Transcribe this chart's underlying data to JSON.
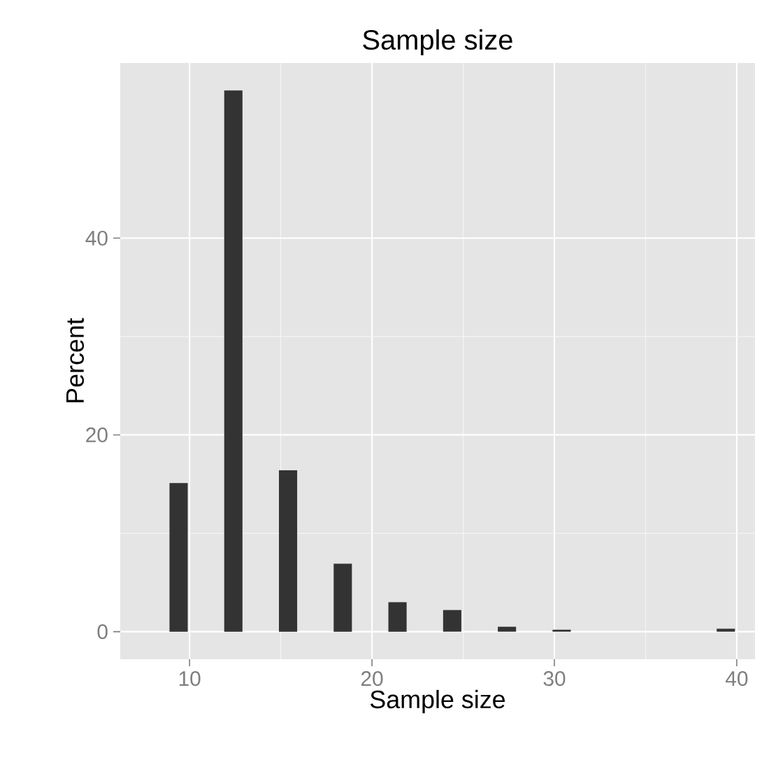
{
  "chart_data": {
    "type": "bar",
    "title": "Sample size",
    "xlabel": "Sample size",
    "ylabel": "Percent",
    "x": [
      9.4,
      12.4,
      15.4,
      18.4,
      21.4,
      24.4,
      27.4,
      30.4,
      39.4
    ],
    "values": [
      15.1,
      55.0,
      16.4,
      6.9,
      3.0,
      2.2,
      0.5,
      0.2,
      0.3
    ],
    "color": "#333333",
    "xlim": [
      6.2,
      41
    ],
    "xticks": [
      10,
      20,
      30,
      40
    ],
    "ylim": [
      -2.8,
      57.8
    ],
    "yticks": [
      0,
      20,
      40
    ],
    "grid": true
  }
}
